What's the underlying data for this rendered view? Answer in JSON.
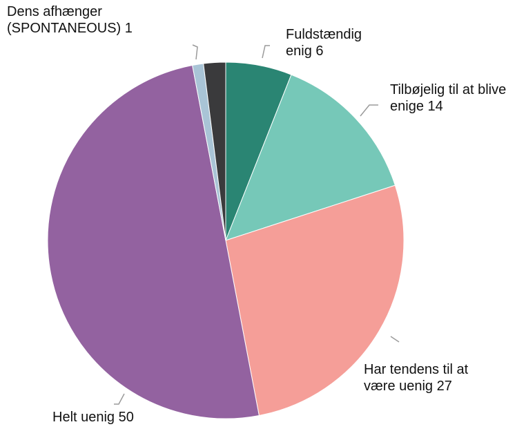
{
  "chart_data": {
    "type": "pie",
    "categories": [
      "Fuldstændig enig",
      "Tilbøjelig til at blive enige",
      "Har tendens til at være uenig",
      "Helt uenig",
      "Dens afhænger (SPONTANEOUS)",
      null
    ],
    "values": [
      6,
      14,
      27,
      50,
      1,
      2
    ],
    "colors": [
      "#2a8573",
      "#76c8b8",
      "#f59e98",
      "#9362a0",
      "#a9c4d6",
      "#3a3a3c"
    ]
  }
}
